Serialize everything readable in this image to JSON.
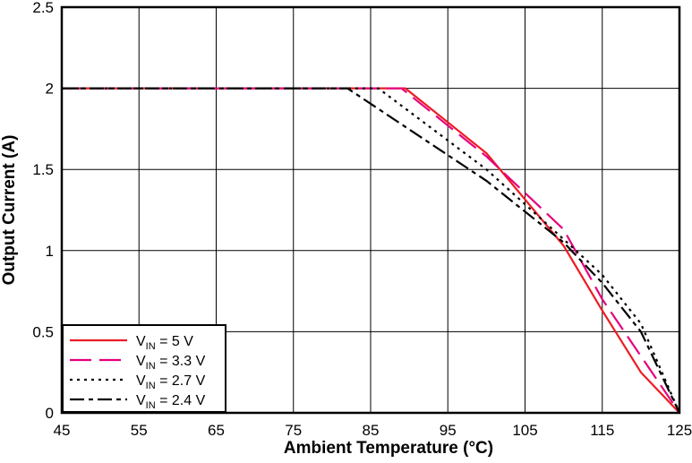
{
  "chart_data": {
    "type": "line",
    "title": "",
    "xlabel": "Ambient Temperature (°C)",
    "ylabel": "Output Current (A)",
    "xlim": [
      45,
      125
    ],
    "ylim": [
      0,
      2.5
    ],
    "xticks": [
      45,
      55,
      65,
      75,
      85,
      95,
      105,
      115,
      125
    ],
    "yticks": [
      0,
      0.5,
      1,
      1.5,
      2,
      2.5
    ],
    "x_tick_labels": [
      "45",
      "55",
      "65",
      "75",
      "85",
      "95",
      "105",
      "115",
      "125"
    ],
    "y_tick_labels": [
      "0",
      "0.5",
      "1",
      "1.5",
      "2",
      "2.5"
    ],
    "grid": true,
    "legend_position": "bottom-left",
    "series": [
      {
        "name": "VIN = 5 V",
        "legend_main": "V",
        "legend_sub": "IN",
        "legend_rest": " = 5 V",
        "color": "#ed1c24",
        "dash": "solid",
        "points": [
          [
            45,
            2.0
          ],
          [
            89.5,
            2.0
          ],
          [
            100,
            1.6
          ],
          [
            110,
            1.03
          ],
          [
            115,
            0.63
          ],
          [
            120,
            0.25
          ],
          [
            125,
            0.0
          ]
        ]
      },
      {
        "name": "VIN = 3.3 V",
        "legend_main": "V",
        "legend_sub": "IN",
        "legend_rest": " = 3.3 V",
        "color": "#e6007e",
        "dash": "long-dash",
        "points": [
          [
            45,
            2.0
          ],
          [
            89,
            2.0
          ],
          [
            100,
            1.58
          ],
          [
            110,
            1.13
          ],
          [
            115,
            0.7
          ],
          [
            120,
            0.35
          ],
          [
            125,
            0.0
          ]
        ]
      },
      {
        "name": "VIN = 2.7 V",
        "legend_main": "V",
        "legend_sub": "IN",
        "legend_rest": " = 2.7 V",
        "color": "#000000",
        "dash": "dotted",
        "points": [
          [
            45,
            2.0
          ],
          [
            86,
            2.0
          ],
          [
            100,
            1.5
          ],
          [
            110,
            1.07
          ],
          [
            115,
            0.85
          ],
          [
            120,
            0.55
          ],
          [
            125,
            0.0
          ]
        ]
      },
      {
        "name": "VIN = 2.4 V",
        "legend_main": "V",
        "legend_sub": "IN",
        "legend_rest": " = 2.4 V",
        "color": "#000000",
        "dash": "dash-dot",
        "points": [
          [
            45,
            2.0
          ],
          [
            82,
            2.0
          ],
          [
            100,
            1.43
          ],
          [
            110,
            1.05
          ],
          [
            115,
            0.8
          ],
          [
            120,
            0.5
          ],
          [
            125,
            0.0
          ]
        ]
      }
    ]
  }
}
